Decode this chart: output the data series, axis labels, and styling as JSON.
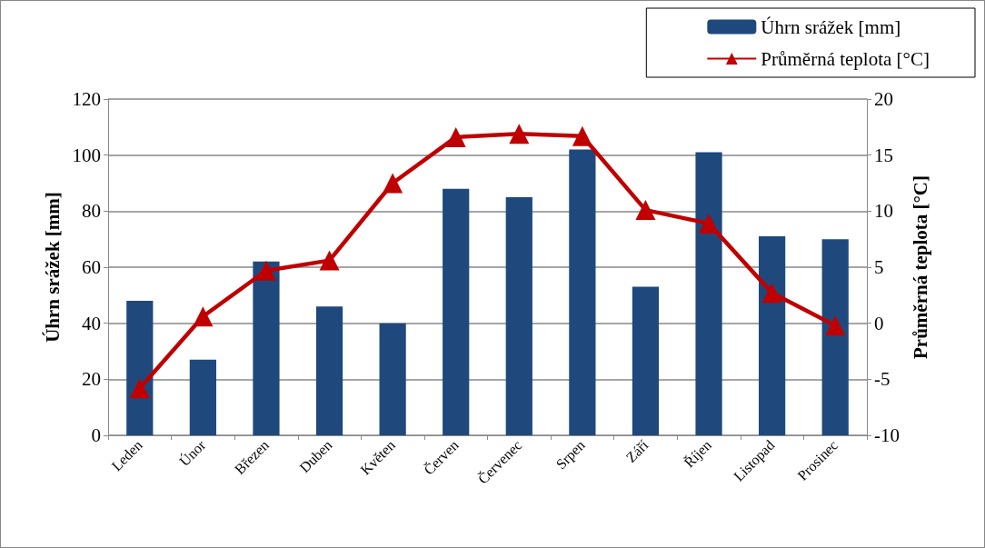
{
  "chart_data": {
    "type": "bar",
    "categories": [
      "Leden",
      "Únor",
      "Březen",
      "Duben",
      "Květen",
      "Červen",
      "Červenec",
      "Srpen",
      "Září",
      "Říjen",
      "Listopad",
      "Prosinec"
    ],
    "series": [
      {
        "name": "Úhrn srážek [mm]",
        "color": "#1f497d",
        "values": [
          48,
          27,
          62,
          46,
          40,
          88,
          85,
          102,
          53,
          101,
          71,
          70
        ]
      },
      {
        "name": "Průměrná teplota [°C]",
        "type": "line",
        "axis": "y2",
        "color": "#c00000",
        "marker": "triangle",
        "values": [
          -5.8,
          0.6,
          4.7,
          5.6,
          12.5,
          16.6,
          16.9,
          16.7,
          10.1,
          8.9,
          2.7,
          -0.2
        ]
      }
    ],
    "ylabel": "Úhrn srážek [mm]",
    "y2label": "Průměrná teplota [°C]",
    "ylim": [
      0,
      120
    ],
    "yticks": [
      0,
      20,
      40,
      60,
      80,
      100,
      120
    ],
    "y2lim": [
      -10,
      20
    ],
    "y2ticks": [
      -10,
      -5,
      0,
      5,
      10,
      15,
      20
    ],
    "grid": "y",
    "legend": "top right"
  }
}
